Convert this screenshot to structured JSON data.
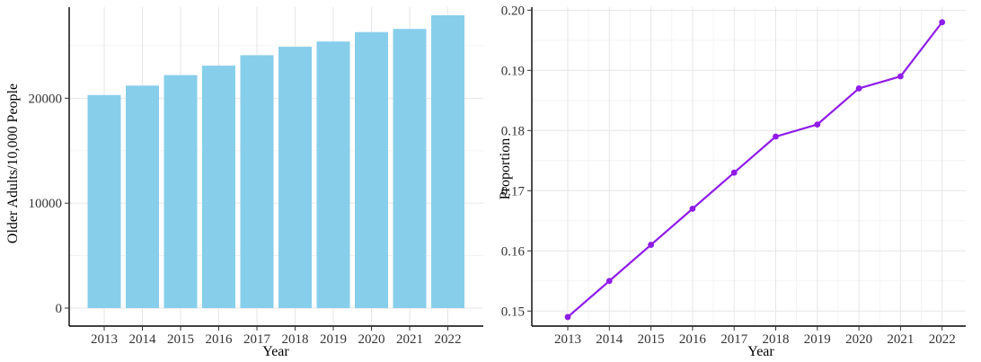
{
  "chart_data": [
    {
      "type": "bar",
      "categories": [
        "2013",
        "2014",
        "2015",
        "2016",
        "2017",
        "2018",
        "2019",
        "2020",
        "2021",
        "2022"
      ],
      "values": [
        20300,
        21200,
        22200,
        23100,
        24100,
        24900,
        25400,
        26300,
        26600,
        27900
      ],
      "title": "",
      "xlabel": "Year",
      "ylabel": "Older Adults/10,000 People",
      "ylim": [
        0,
        28500
      ],
      "yticks": [
        "0",
        "10000",
        "20000"
      ],
      "color": "#87CEEB",
      "grid": true
    },
    {
      "type": "line",
      "x": [
        "2013",
        "2014",
        "2015",
        "2016",
        "2017",
        "2018",
        "2019",
        "2020",
        "2021",
        "2022"
      ],
      "values": [
        0.149,
        0.155,
        0.161,
        0.167,
        0.173,
        0.179,
        0.181,
        0.187,
        0.189,
        0.198
      ],
      "title": "",
      "xlabel": "Year",
      "ylabel": "Proportion",
      "ylim": [
        0.1475,
        0.2005
      ],
      "yticks": [
        "0.15",
        "0.16",
        "0.17",
        "0.18",
        "0.19",
        "0.20"
      ],
      "color": "#8F1CE8",
      "grid": true
    }
  ]
}
